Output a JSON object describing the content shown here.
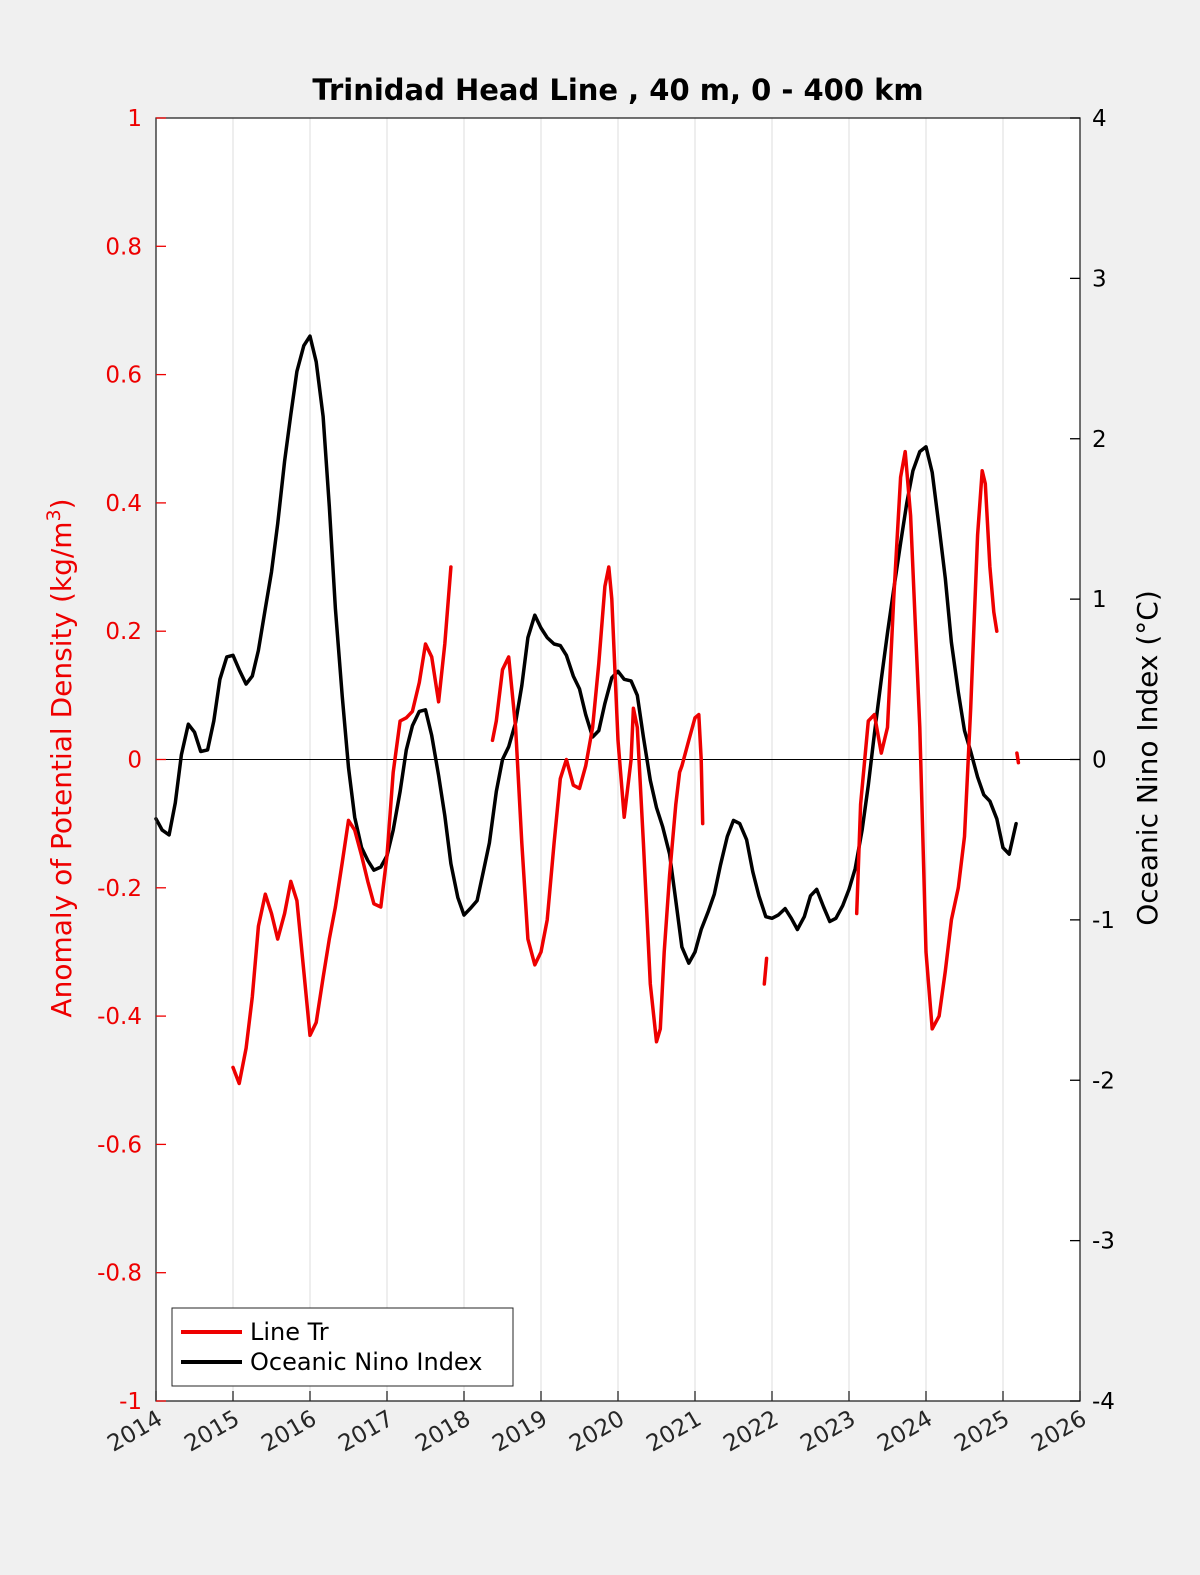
{
  "chart_data": {
    "type": "line",
    "title": "Trinidad Head Line , 40 m, 0 - 400 km",
    "xlabel": "",
    "ylabel_left": "Anomaly of Potential Density (kg/m",
    "ylabel_left_sup": "3",
    "ylabel_left_close": ")",
    "ylabel_right": "Oceanic Nino Index (°C)",
    "xlim": [
      2014,
      2026
    ],
    "ylim_left": [
      -1,
      1
    ],
    "ylim_right": [
      -4,
      4
    ],
    "x_ticks": [
      "2014",
      "2015",
      "2016",
      "2017",
      "2018",
      "2019",
      "2020",
      "2021",
      "2022",
      "2023",
      "2024",
      "2025",
      "2026"
    ],
    "y_left_ticks": [
      "1",
      "0.8",
      "0.6",
      "0.4",
      "0.2",
      "0",
      "-0.2",
      "-0.4",
      "-0.6",
      "-0.8",
      "-1"
    ],
    "y_right_ticks": [
      "4",
      "3",
      "2",
      "1",
      "0",
      "-1",
      "-2",
      "-3",
      "-4"
    ],
    "grid": "vertical",
    "zero_line": true,
    "legend": {
      "placement": "bottom-left",
      "entries": [
        {
          "label": "Line Tr",
          "color": "#ee0000"
        },
        {
          "label": "Oceanic Nino Index",
          "color": "#000000"
        }
      ]
    },
    "colors": {
      "left_axis": "#ee0000",
      "right_axis": "#000000",
      "line_tr": "#ee0000",
      "oni": "#000000"
    },
    "series": [
      {
        "name": "Line Tr",
        "axis": "left",
        "color": "#ee0000",
        "segments": [
          [
            [
              2015.0,
              -0.48
            ],
            [
              2015.08,
              -0.505
            ],
            [
              2015.17,
              -0.45
            ],
            [
              2015.25,
              -0.37
            ],
            [
              2015.33,
              -0.26
            ],
            [
              2015.42,
              -0.21
            ],
            [
              2015.5,
              -0.24
            ],
            [
              2015.58,
              -0.28
            ],
            [
              2015.67,
              -0.24
            ],
            [
              2015.75,
              -0.19
            ],
            [
              2015.83,
              -0.22
            ],
            [
              2015.92,
              -0.33
            ],
            [
              2016.0,
              -0.43
            ],
            [
              2016.08,
              -0.41
            ],
            [
              2016.17,
              -0.34
            ],
            [
              2016.25,
              -0.28
            ],
            [
              2016.33,
              -0.23
            ],
            [
              2016.42,
              -0.16
            ],
            [
              2016.5,
              -0.095
            ],
            [
              2016.58,
              -0.11
            ],
            [
              2016.67,
              -0.15
            ],
            [
              2016.75,
              -0.19
            ],
            [
              2016.83,
              -0.225
            ],
            [
              2016.92,
              -0.23
            ],
            [
              2017.0,
              -0.15
            ],
            [
              2017.08,
              -0.02
            ],
            [
              2017.17,
              0.06
            ],
            [
              2017.25,
              0.065
            ],
            [
              2017.33,
              0.075
            ],
            [
              2017.42,
              0.12
            ],
            [
              2017.5,
              0.18
            ],
            [
              2017.58,
              0.16
            ],
            [
              2017.67,
              0.09
            ],
            [
              2017.75,
              0.18
            ],
            [
              2017.83,
              0.3
            ]
          ],
          [
            [
              2018.37,
              0.03
            ],
            [
              2018.42,
              0.06
            ],
            [
              2018.5,
              0.14
            ],
            [
              2018.58,
              0.16
            ],
            [
              2018.67,
              0.05
            ],
            [
              2018.75,
              -0.13
            ],
            [
              2018.83,
              -0.28
            ],
            [
              2018.92,
              -0.32
            ],
            [
              2019.0,
              -0.3
            ],
            [
              2019.08,
              -0.25
            ],
            [
              2019.17,
              -0.13
            ],
            [
              2019.25,
              -0.03
            ],
            [
              2019.33,
              0.0
            ],
            [
              2019.42,
              -0.04
            ],
            [
              2019.5,
              -0.045
            ],
            [
              2019.58,
              -0.01
            ],
            [
              2019.67,
              0.05
            ],
            [
              2019.75,
              0.15
            ],
            [
              2019.83,
              0.27
            ],
            [
              2019.88,
              0.3
            ],
            [
              2019.92,
              0.25
            ],
            [
              2020.0,
              0.03
            ],
            [
              2020.08,
              -0.09
            ],
            [
              2020.17,
              0.0
            ],
            [
              2020.2,
              0.08
            ],
            [
              2020.25,
              0.05
            ],
            [
              2020.33,
              -0.13
            ],
            [
              2020.42,
              -0.35
            ],
            [
              2020.5,
              -0.44
            ],
            [
              2020.55,
              -0.42
            ],
            [
              2020.6,
              -0.3
            ],
            [
              2020.67,
              -0.18
            ],
            [
              2020.75,
              -0.07
            ],
            [
              2020.8,
              -0.02
            ],
            [
              2020.83,
              -0.01
            ],
            [
              2020.92,
              0.03
            ],
            [
              2021.0,
              0.065
            ],
            [
              2021.05,
              0.07
            ],
            [
              2021.08,
              0.0
            ],
            [
              2021.1,
              -0.1
            ]
          ],
          [
            [
              2021.9,
              -0.35
            ],
            [
              2021.93,
              -0.31
            ]
          ],
          [
            [
              2023.1,
              -0.24
            ],
            [
              2023.15,
              -0.07
            ],
            [
              2023.25,
              0.06
            ],
            [
              2023.33,
              0.07
            ],
            [
              2023.42,
              0.01
            ],
            [
              2023.5,
              0.05
            ],
            [
              2023.58,
              0.25
            ],
            [
              2023.67,
              0.44
            ],
            [
              2023.73,
              0.48
            ],
            [
              2023.8,
              0.38
            ],
            [
              2023.92,
              0.05
            ],
            [
              2024.0,
              -0.3
            ],
            [
              2024.08,
              -0.42
            ],
            [
              2024.17,
              -0.4
            ],
            [
              2024.25,
              -0.33
            ],
            [
              2024.33,
              -0.25
            ],
            [
              2024.42,
              -0.2
            ],
            [
              2024.5,
              -0.12
            ],
            [
              2024.58,
              0.08
            ],
            [
              2024.67,
              0.35
            ],
            [
              2024.73,
              0.45
            ],
            [
              2024.77,
              0.43
            ],
            [
              2024.83,
              0.3
            ],
            [
              2024.88,
              0.23
            ],
            [
              2024.92,
              0.2
            ]
          ],
          [
            [
              2025.18,
              0.01
            ],
            [
              2025.2,
              -0.005
            ]
          ]
        ]
      },
      {
        "name": "Oceanic Nino Index",
        "axis": "right",
        "color": "#000000",
        "points": [
          [
            2014.0,
            -0.37
          ],
          [
            2014.08,
            -0.44
          ],
          [
            2014.17,
            -0.47
          ],
          [
            2014.25,
            -0.27
          ],
          [
            2014.33,
            0.03
          ],
          [
            2014.42,
            0.22
          ],
          [
            2014.5,
            0.17
          ],
          [
            2014.58,
            0.05
          ],
          [
            2014.67,
            0.06
          ],
          [
            2014.75,
            0.24
          ],
          [
            2014.83,
            0.5
          ],
          [
            2014.92,
            0.64
          ],
          [
            2015.0,
            0.65
          ],
          [
            2015.08,
            0.56
          ],
          [
            2015.17,
            0.47
          ],
          [
            2015.25,
            0.52
          ],
          [
            2015.33,
            0.68
          ],
          [
            2015.42,
            0.94
          ],
          [
            2015.5,
            1.17
          ],
          [
            2015.58,
            1.47
          ],
          [
            2015.67,
            1.86
          ],
          [
            2015.75,
            2.15
          ],
          [
            2015.83,
            2.42
          ],
          [
            2015.92,
            2.58
          ],
          [
            2016.0,
            2.64
          ],
          [
            2016.08,
            2.48
          ],
          [
            2016.17,
            2.14
          ],
          [
            2016.25,
            1.58
          ],
          [
            2016.33,
            0.94
          ],
          [
            2016.42,
            0.39
          ],
          [
            2016.5,
            -0.05
          ],
          [
            2016.58,
            -0.36
          ],
          [
            2016.67,
            -0.55
          ],
          [
            2016.75,
            -0.63
          ],
          [
            2016.83,
            -0.69
          ],
          [
            2016.92,
            -0.67
          ],
          [
            2017.0,
            -0.6
          ],
          [
            2017.08,
            -0.44
          ],
          [
            2017.17,
            -0.2
          ],
          [
            2017.25,
            0.06
          ],
          [
            2017.33,
            0.21
          ],
          [
            2017.42,
            0.3
          ],
          [
            2017.5,
            0.31
          ],
          [
            2017.58,
            0.15
          ],
          [
            2017.67,
            -0.1
          ],
          [
            2017.75,
            -0.35
          ],
          [
            2017.83,
            -0.65
          ],
          [
            2017.92,
            -0.86
          ],
          [
            2018.0,
            -0.97
          ],
          [
            2018.08,
            -0.93
          ],
          [
            2018.17,
            -0.88
          ],
          [
            2018.25,
            -0.7
          ],
          [
            2018.33,
            -0.52
          ],
          [
            2018.42,
            -0.2
          ],
          [
            2018.5,
            0.0
          ],
          [
            2018.58,
            0.08
          ],
          [
            2018.67,
            0.23
          ],
          [
            2018.75,
            0.46
          ],
          [
            2018.83,
            0.76
          ],
          [
            2018.92,
            0.9
          ],
          [
            2019.0,
            0.82
          ],
          [
            2019.08,
            0.76
          ],
          [
            2019.17,
            0.72
          ],
          [
            2019.25,
            0.71
          ],
          [
            2019.33,
            0.65
          ],
          [
            2019.42,
            0.52
          ],
          [
            2019.5,
            0.44
          ],
          [
            2019.58,
            0.28
          ],
          [
            2019.67,
            0.14
          ],
          [
            2019.75,
            0.18
          ],
          [
            2019.83,
            0.35
          ],
          [
            2019.92,
            0.51
          ],
          [
            2020.0,
            0.55
          ],
          [
            2020.08,
            0.5
          ],
          [
            2020.17,
            0.49
          ],
          [
            2020.25,
            0.4
          ],
          [
            2020.33,
            0.14
          ],
          [
            2020.42,
            -0.13
          ],
          [
            2020.5,
            -0.3
          ],
          [
            2020.58,
            -0.42
          ],
          [
            2020.67,
            -0.59
          ],
          [
            2020.75,
            -0.88
          ],
          [
            2020.83,
            -1.17
          ],
          [
            2020.92,
            -1.27
          ],
          [
            2021.0,
            -1.2
          ],
          [
            2021.08,
            -1.06
          ],
          [
            2021.17,
            -0.95
          ],
          [
            2021.25,
            -0.84
          ],
          [
            2021.33,
            -0.66
          ],
          [
            2021.42,
            -0.48
          ],
          [
            2021.5,
            -0.38
          ],
          [
            2021.58,
            -0.4
          ],
          [
            2021.67,
            -0.5
          ],
          [
            2021.75,
            -0.7
          ],
          [
            2021.83,
            -0.85
          ],
          [
            2021.92,
            -0.98
          ],
          [
            2022.0,
            -0.99
          ],
          [
            2022.08,
            -0.97
          ],
          [
            2022.17,
            -0.93
          ],
          [
            2022.25,
            -0.99
          ],
          [
            2022.33,
            -1.06
          ],
          [
            2022.42,
            -0.98
          ],
          [
            2022.5,
            -0.85
          ],
          [
            2022.58,
            -0.81
          ],
          [
            2022.67,
            -0.92
          ],
          [
            2022.75,
            -1.01
          ],
          [
            2022.83,
            -0.99
          ],
          [
            2022.92,
            -0.91
          ],
          [
            2023.0,
            -0.81
          ],
          [
            2023.08,
            -0.68
          ],
          [
            2023.17,
            -0.44
          ],
          [
            2023.25,
            -0.16
          ],
          [
            2023.33,
            0.16
          ],
          [
            2023.42,
            0.5
          ],
          [
            2023.5,
            0.79
          ],
          [
            2023.58,
            1.06
          ],
          [
            2023.67,
            1.35
          ],
          [
            2023.75,
            1.6
          ],
          [
            2023.83,
            1.8
          ],
          [
            2023.92,
            1.92
          ],
          [
            2024.0,
            1.95
          ],
          [
            2024.08,
            1.79
          ],
          [
            2024.17,
            1.45
          ],
          [
            2024.25,
            1.13
          ],
          [
            2024.33,
            0.73
          ],
          [
            2024.42,
            0.42
          ],
          [
            2024.5,
            0.18
          ],
          [
            2024.58,
            0.05
          ],
          [
            2024.67,
            -0.11
          ],
          [
            2024.75,
            -0.22
          ],
          [
            2024.83,
            -0.26
          ],
          [
            2024.92,
            -0.37
          ],
          [
            2025.0,
            -0.55
          ],
          [
            2025.08,
            -0.59
          ],
          [
            2025.17,
            -0.4
          ]
        ]
      }
    ]
  }
}
